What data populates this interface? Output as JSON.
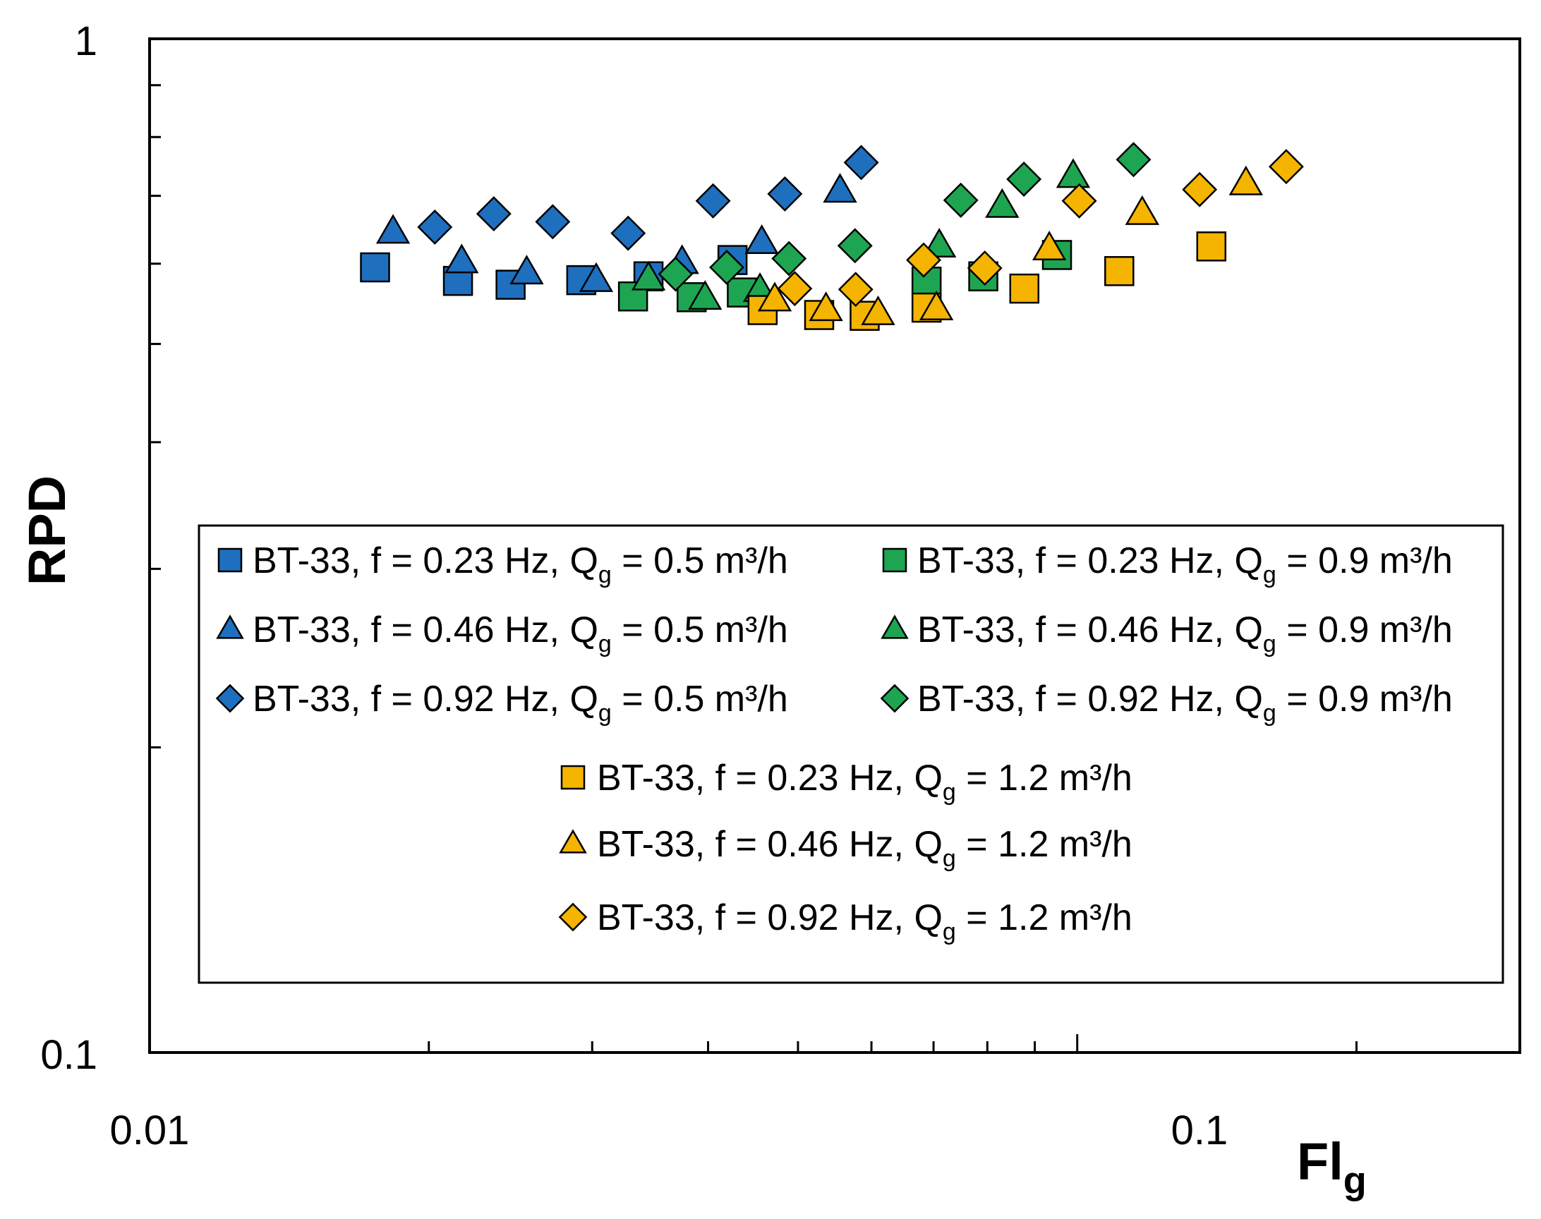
{
  "chart_data": {
    "type": "scatter",
    "xscale": "log",
    "yscale": "log",
    "xlim": [
      0.01,
      0.3
    ],
    "ylim": [
      0.1,
      1
    ],
    "xlabel": "Fl",
    "xlabel_sub": "g",
    "ylabel": "RPD",
    "x_tick_labels": [
      "0.01",
      "0.1"
    ],
    "y_tick_labels": [
      "0.1",
      "1"
    ],
    "grid": false,
    "legend_position": "center-bottom",
    "series": [
      {
        "name": "BT-33, f = 0.23 Hz, Q",
        "sub": "g",
        "rest": " = 0.5 m³/h",
        "marker": "square",
        "color": "#1f6fbf",
        "x": [
          0.0175,
          0.0215,
          0.0245,
          0.0292,
          0.0345,
          0.0425
        ],
        "y": [
          0.595,
          0.577,
          0.572,
          0.578,
          0.583,
          0.605
        ]
      },
      {
        "name": "BT-33, f = 0.46 Hz, Q",
        "sub": "g",
        "rest": " = 0.5 m³/h",
        "marker": "triangle",
        "color": "#1f6fbf",
        "x": [
          0.0183,
          0.0217,
          0.0255,
          0.0303,
          0.0375,
          0.0457,
          0.0555
        ],
        "y": [
          0.645,
          0.603,
          0.588,
          0.578,
          0.602,
          0.63,
          0.708
        ]
      },
      {
        "name": "BT-33, f = 0.92 Hz, Q",
        "sub": "g",
        "rest": " = 0.5 m³/h",
        "marker": "diamond",
        "color": "#1f6fbf",
        "x": [
          0.0203,
          0.0235,
          0.0272,
          0.0328,
          0.0405,
          0.0484,
          0.0585
        ],
        "y": [
          0.652,
          0.672,
          0.66,
          0.643,
          0.692,
          0.703,
          0.755
        ]
      },
      {
        "name": "BT-33, f = 0.23 Hz, Q",
        "sub": "g",
        "rest": " = 0.9 m³/h",
        "marker": "square",
        "color": "#1ea551",
        "x": [
          0.0332,
          0.0384,
          0.0435,
          0.0688,
          0.0792,
          0.0951
        ],
        "y": [
          0.557,
          0.556,
          0.562,
          0.576,
          0.583,
          0.612
        ]
      },
      {
        "name": "BT-33, f = 0.46 Hz, Q",
        "sub": "g",
        "rest": " = 0.9 m³/h",
        "marker": "triangle",
        "color": "#1ea551",
        "x": [
          0.0345,
          0.0397,
          0.0455,
          0.071,
          0.083,
          0.099
        ],
        "y": [
          0.58,
          0.555,
          0.565,
          0.625,
          0.684,
          0.732
        ]
      },
      {
        "name": "BT-33, f = 0.92 Hz, Q",
        "sub": "g",
        "rest": " = 0.9 m³/h",
        "marker": "diamond",
        "color": "#1ea551",
        "x": [
          0.0369,
          0.0419,
          0.0489,
          0.0576,
          0.0749,
          0.0876,
          0.115
        ],
        "y": [
          0.586,
          0.595,
          0.607,
          0.625,
          0.693,
          0.727,
          0.76
        ]
      },
      {
        "name": "BT-33, f = 0.23 Hz, Q",
        "sub": "g",
        "rest": " = 1.2 m³/h",
        "marker": "square",
        "color": "#f5b400",
        "x": [
          0.0458,
          0.0527,
          0.059,
          0.0688,
          0.0877,
          0.111,
          0.1395
        ],
        "y": [
          0.54,
          0.534,
          0.533,
          0.543,
          0.567,
          0.59,
          0.624
        ]
      },
      {
        "name": "BT-33, f = 0.46 Hz, Q",
        "sub": "g",
        "rest": " = 1.2 m³/h",
        "marker": "triangle",
        "color": "#f5b400",
        "x": [
          0.0472,
          0.0536,
          0.061,
          0.0705,
          0.0933,
          0.1175,
          0.152
        ],
        "y": [
          0.553,
          0.541,
          0.536,
          0.542,
          0.621,
          0.673,
          0.72
        ]
      },
      {
        "name": "BT-33, f = 0.92 Hz, Q",
        "sub": "g",
        "rest": " = 1.2 m³/h",
        "marker": "diamond",
        "color": "#f5b400",
        "x": [
          0.0496,
          0.0577,
          0.0683,
          0.0795,
          0.1005,
          0.1355,
          0.168
        ],
        "y": [
          0.567,
          0.566,
          0.605,
          0.594,
          0.692,
          0.71,
          0.748
        ]
      }
    ]
  }
}
